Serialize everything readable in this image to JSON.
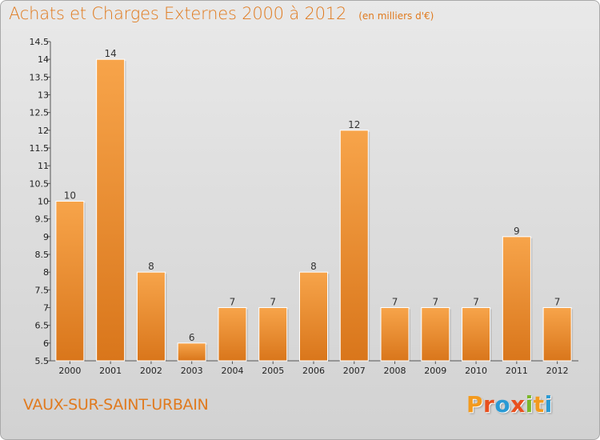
{
  "title": "Achats et Charges Externes 2000 à 2012",
  "unit": "(en milliers d'€)",
  "commune": "VAUX-SUR-SAINT-URBAIN",
  "logo": {
    "letters": [
      "P",
      "r",
      "o",
      "x",
      "i",
      "t",
      "i"
    ],
    "colors": [
      "#f39a1e",
      "#e8501e",
      "#2a9ad4",
      "#e8501e",
      "#7ab829",
      "#f39a1e",
      "#2a9ad4"
    ]
  },
  "colors": {
    "bar_light": "#f7a44a",
    "bar_dark": "#d9761b",
    "title": "#e07a1e"
  },
  "chart_data": {
    "type": "bar",
    "title": "Achats et Charges Externes 2000 à 2012",
    "subtitle": "(en milliers d'€)",
    "categories": [
      "2000",
      "2001",
      "2002",
      "2003",
      "2004",
      "2005",
      "2006",
      "2007",
      "2008",
      "2009",
      "2010",
      "2011",
      "2012"
    ],
    "values": [
      10,
      14,
      8,
      6,
      7,
      7,
      8,
      12,
      7,
      7,
      7,
      9,
      7
    ],
    "ylim": [
      5.5,
      14.5
    ],
    "yticks": [
      5.5,
      6,
      6.5,
      7,
      7.5,
      8,
      8.5,
      9,
      9.5,
      10,
      10.5,
      11,
      11.5,
      12,
      12.5,
      13,
      13.5,
      14,
      14.5
    ],
    "ytick_labels": [
      "5.5",
      "6",
      "6.5",
      "7",
      "7.5",
      "8",
      "8.5",
      "9",
      "9.5",
      "10",
      "10.5",
      "11",
      "11.5",
      "12",
      "12.5",
      "13",
      "13.5",
      "14",
      "14.5"
    ],
    "xlabel": "",
    "ylabel": "",
    "grid": false,
    "legend": "none"
  }
}
